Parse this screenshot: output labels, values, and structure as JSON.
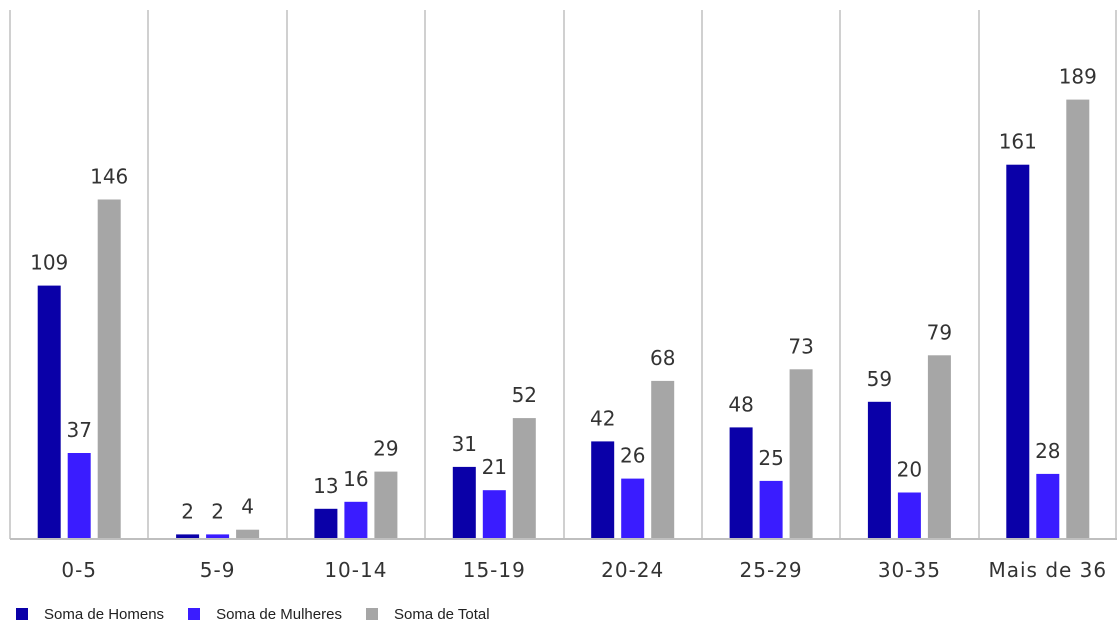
{
  "chart_data": {
    "type": "bar",
    "categories": [
      "0-5",
      "5-9",
      "10-14",
      "15-19",
      "20-24",
      "25-29",
      "30-35",
      "Mais de 36"
    ],
    "series": [
      {
        "name": "Soma de Homens",
        "color": "#0A00A8",
        "values": [
          109,
          2,
          13,
          31,
          42,
          48,
          59,
          161
        ]
      },
      {
        "name": "Soma de Mulheres",
        "color": "#3A1CFF",
        "values": [
          37,
          2,
          16,
          21,
          26,
          25,
          20,
          28
        ]
      },
      {
        "name": "Soma de Total",
        "color": "#A6A6A6",
        "values": [
          146,
          4,
          29,
          52,
          68,
          73,
          79,
          189
        ]
      }
    ],
    "title": "",
    "xlabel": "",
    "ylabel": "",
    "ylim": [
      0,
      200
    ],
    "grid": "vertical-separators",
    "legend_position": "bottom-left",
    "data_labels": true
  }
}
